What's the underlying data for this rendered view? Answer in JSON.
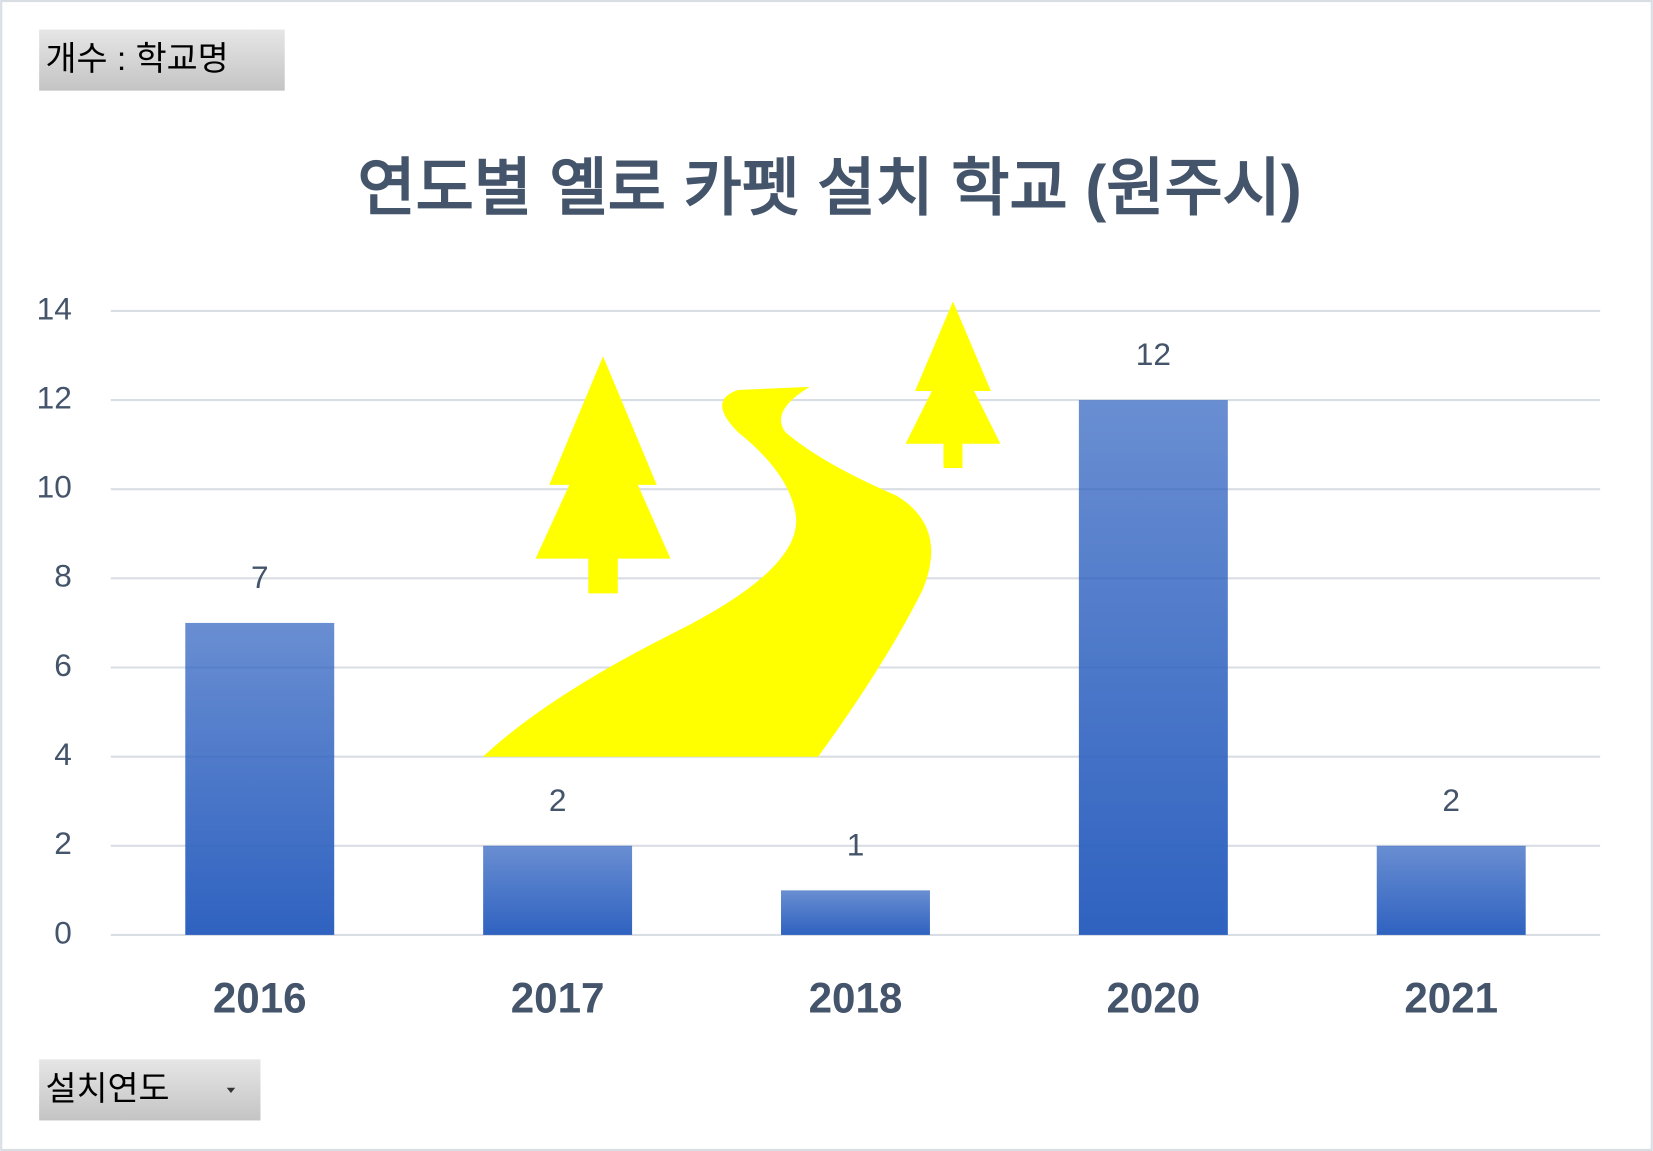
{
  "chart_data": {
    "type": "bar",
    "title": "연도별 옐로 카펫 설치 학교 (원주시)",
    "value_field": "개수 : 학교명",
    "category_field": "설치연도",
    "categories": [
      "2016",
      "2017",
      "2018",
      "2020",
      "2021"
    ],
    "values": [
      7,
      2,
      1,
      12,
      2
    ],
    "color": "#2f62c0",
    "ylim": [
      0,
      14
    ],
    "yticks": [
      0,
      2,
      4,
      6,
      8,
      10,
      12,
      14
    ],
    "grid": true
  }
}
